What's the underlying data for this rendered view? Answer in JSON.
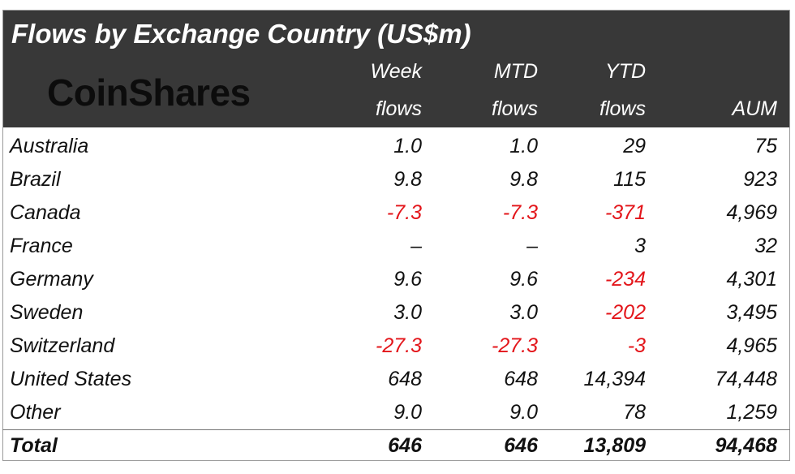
{
  "header": {
    "title": "Flows by Exchange Country (US$m)",
    "logo": "CoinShares",
    "columns": [
      [
        "Week",
        "flows"
      ],
      [
        "MTD",
        "flows"
      ],
      [
        "YTD",
        "flows"
      ],
      [
        "AUM"
      ]
    ]
  },
  "table": {
    "rows": [
      [
        "Australia",
        "1.0",
        "1.0",
        "29",
        "75"
      ],
      [
        "Brazil",
        "9.8",
        "9.8",
        "115",
        "923"
      ],
      [
        "Canada",
        "-7.3",
        "-7.3",
        "-371",
        "4,969"
      ],
      [
        "France",
        "–",
        "–",
        "3",
        "32"
      ],
      [
        "Germany",
        "9.6",
        "9.6",
        "-234",
        "4,301"
      ],
      [
        "Sweden",
        "3.0",
        "3.0",
        "-202",
        "3,495"
      ],
      [
        "Switzerland",
        "-27.3",
        "-27.3",
        "-3",
        "4,965"
      ],
      [
        "United States",
        "648",
        "648",
        "14,394",
        "74,448"
      ],
      [
        "Other",
        "9.0",
        "9.0",
        "78",
        "1,259"
      ]
    ],
    "total": [
      "Total",
      "646",
      "646",
      "13,809",
      "94,468"
    ]
  }
}
